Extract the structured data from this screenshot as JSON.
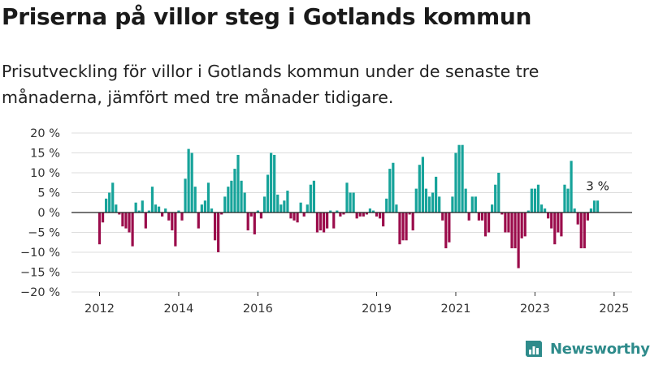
{
  "title": "Priserna på villor steg i Gotlands kommun",
  "subtitle": "Prisutveckling för villor i Gotlands kommun under de senaste tre månaderna, jämfört med tre månader tidigare.",
  "brand": "Newsworthy",
  "colors": {
    "positive": "#16a39a",
    "negative": "#9b0c4b",
    "grid": "#dddddd",
    "brand": "#2e8b8b"
  },
  "chart_data": {
    "type": "bar",
    "title": "Priserna på villor steg i Gotlands kommun",
    "subtitle": "Prisutveckling för villor i Gotlands kommun under de senaste tre månaderna, jämfört med tre månader tidigare.",
    "unit": "%",
    "ylim": [
      -20,
      20
    ],
    "yticks": [
      20,
      15,
      10,
      5,
      0,
      -5,
      -10,
      -15,
      -20
    ],
    "ytick_labels": [
      "20 %",
      "15 %",
      "10 %",
      "5 %",
      "0 %",
      "−5 %",
      "−10 %",
      "−15 %",
      "−20 %"
    ],
    "xticks": [
      "2012",
      "2014",
      "2016",
      "2019",
      "2021",
      "2023",
      "2025"
    ],
    "grid": true,
    "annotation": "3 %",
    "series": [
      {
        "values": [
          -8,
          -2.5,
          3.5,
          5,
          7.5,
          2,
          -0.5,
          -3.5,
          -4,
          -5,
          -8.5,
          2.5,
          0.5,
          3,
          -4,
          0.5,
          6.5,
          2,
          1.5,
          -1,
          1,
          -2,
          -4.5,
          -8.5,
          0.5,
          -2,
          8.5,
          16,
          15,
          6.5,
          -4,
          2,
          3,
          7.5,
          1,
          -7,
          -10,
          -0.5,
          4,
          6.5,
          8,
          11,
          14.5,
          8,
          5,
          -4.5,
          -1,
          -5.5,
          0.5,
          -1.5,
          4,
          9.5,
          15,
          14.5,
          4.5,
          2,
          3,
          5.5,
          -1.5,
          -2,
          -2.5,
          2.5,
          -1,
          2,
          7,
          8,
          -5,
          -4.5,
          -5,
          -4,
          0.5,
          -4,
          0.5,
          -1,
          -0.5,
          7.5,
          5,
          5,
          -1.5,
          -1,
          -1,
          -0.5,
          1,
          0.5,
          -1,
          -1.5,
          -3.5,
          3.5,
          11,
          12.5,
          2,
          -8,
          -7,
          -7,
          -0.5,
          -4.5,
          6,
          12,
          14,
          6,
          4,
          5,
          9,
          4,
          -2,
          -9,
          -7.5,
          4,
          15,
          17,
          17,
          6,
          -2,
          4,
          4,
          -2,
          -2,
          -6,
          -5,
          2,
          7,
          10,
          -0.5,
          -5,
          -5,
          -9,
          -9,
          -14,
          -6.5,
          -6,
          0.5,
          6,
          6,
          7,
          2,
          1,
          -1.5,
          -4,
          -8,
          -5,
          -6,
          7,
          6,
          13,
          1,
          -3,
          -9,
          -9,
          -2,
          1,
          3,
          3
        ]
      }
    ]
  }
}
